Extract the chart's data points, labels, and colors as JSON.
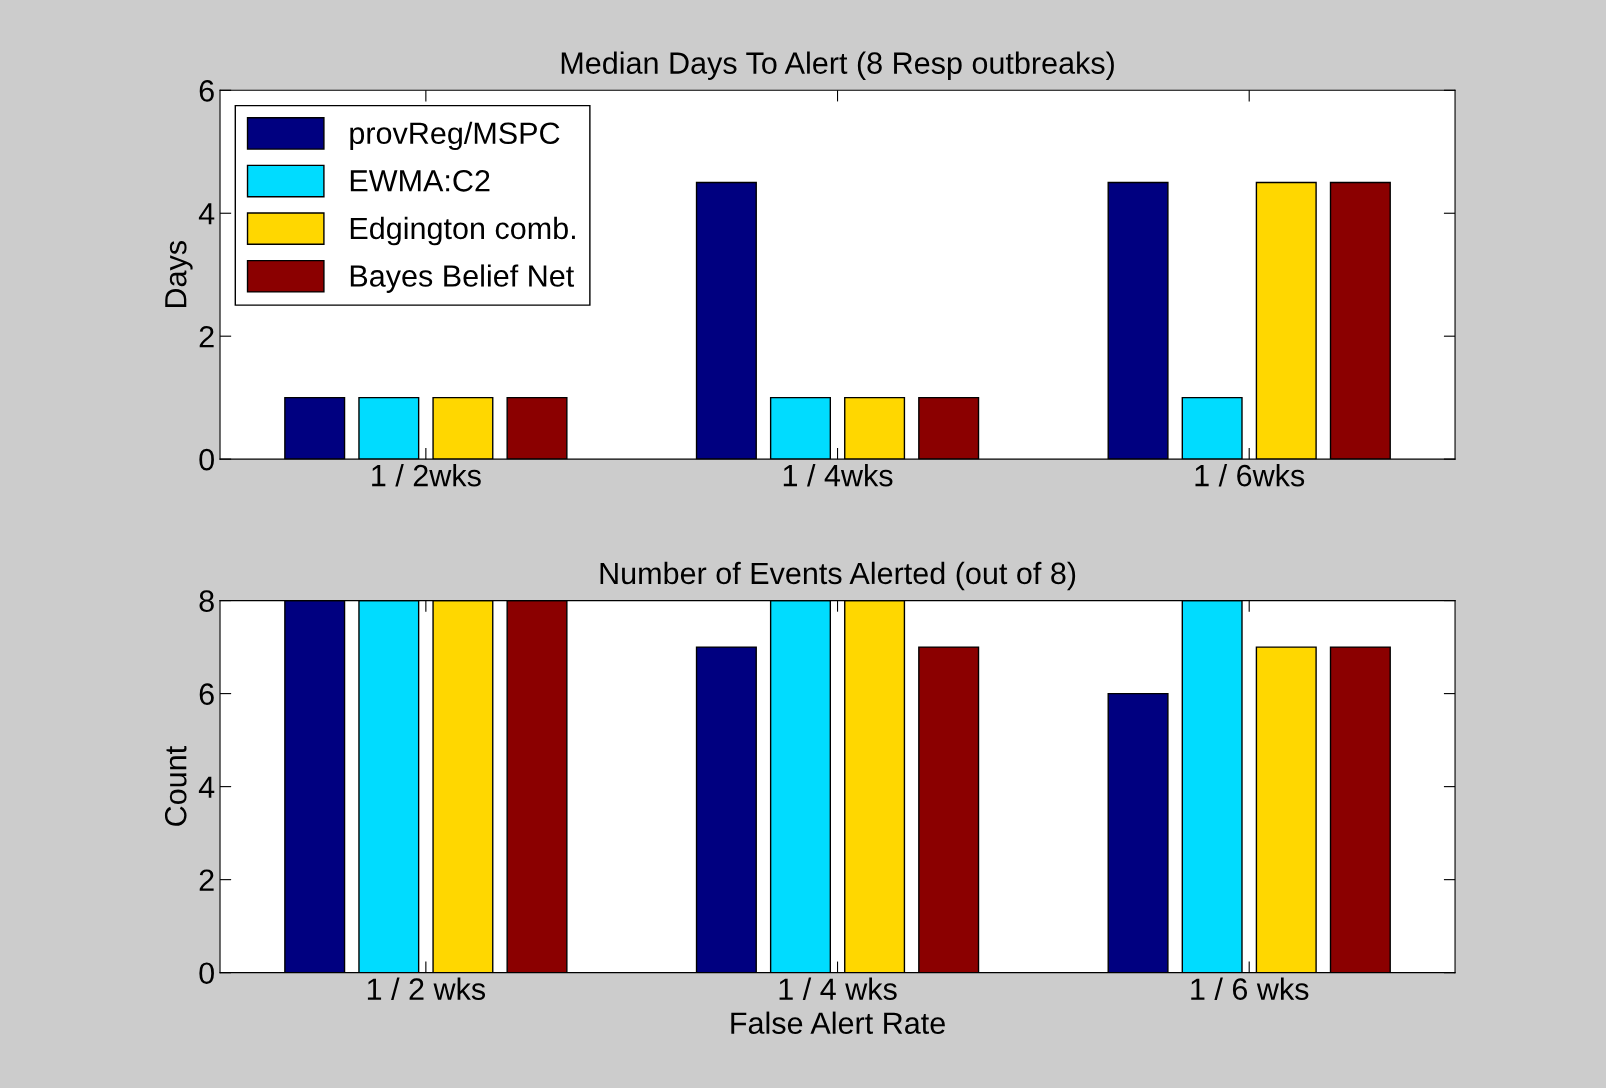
{
  "chart_data": [
    {
      "type": "bar",
      "title": "Median Days To Alert (8 Resp outbreaks)",
      "ylabel": "Days",
      "categories": [
        "1 / 2wks",
        "1 / 4wks",
        "1 / 6wks"
      ],
      "ylim": [
        0,
        6
      ],
      "yticks": [
        0,
        2,
        4,
        6
      ],
      "grid": false,
      "legend": "top left",
      "series": [
        {
          "name": "provReg/MSPC",
          "color": "#000080",
          "values": [
            1,
            4.5,
            4.5
          ]
        },
        {
          "name": "EWMA:C2",
          "color": "#00dcff",
          "values": [
            1,
            1,
            1
          ]
        },
        {
          "name": "Edgington comb.",
          "color": "#ffd700",
          "values": [
            1,
            1,
            4.5
          ]
        },
        {
          "name": "Bayes Belief Net",
          "color": "#8b0000",
          "values": [
            1,
            1,
            4.5
          ]
        }
      ]
    },
    {
      "type": "bar",
      "title": "Number of Events Alerted (out of 8)",
      "ylabel": "Count",
      "xlabel": "False Alert Rate",
      "categories": [
        "1 / 2 wks",
        "1 / 4 wks",
        "1 / 6 wks"
      ],
      "ylim": [
        0,
        8
      ],
      "yticks": [
        0,
        2,
        4,
        6,
        8
      ],
      "grid": false,
      "legend": false,
      "series": [
        {
          "color": "#000080",
          "values": [
            8,
            7,
            6
          ]
        },
        {
          "color": "#00dcff",
          "values": [
            8,
            8,
            8
          ]
        },
        {
          "color": "#ffd700",
          "values": [
            8,
            8,
            7
          ]
        },
        {
          "color": "#8b0000",
          "values": [
            8,
            7,
            7
          ]
        }
      ]
    }
  ]
}
